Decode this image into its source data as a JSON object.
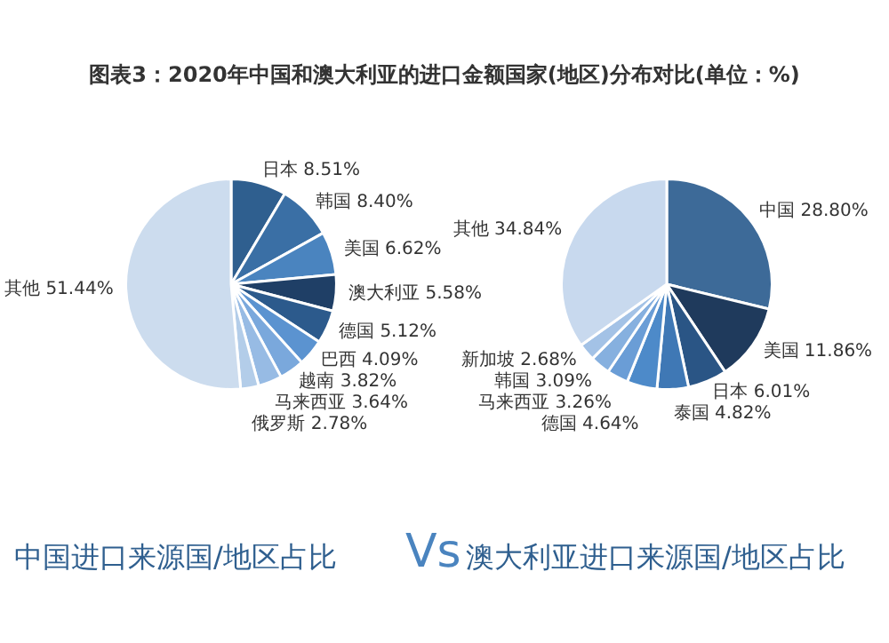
{
  "chart_data": [
    {
      "type": "pie",
      "title": "图表3：2020年中国和澳大利亚的进口金额国家(地区)分布对比(单位：%)",
      "categories": [
        "日本",
        "韩国",
        "美国",
        "澳大利亚",
        "德国",
        "巴西",
        "越南",
        "马来西亚",
        "俄罗斯",
        "其他"
      ],
      "values": [
        8.51,
        8.4,
        6.62,
        5.58,
        5.12,
        4.09,
        3.82,
        3.64,
        2.78,
        51.44
      ],
      "value_labels": [
        "8.51%",
        "8.40%",
        "6.62%",
        "5.58%",
        "5.12%",
        "4.09%",
        "3.82%",
        "3.64%",
        "2.78%",
        "51.44%"
      ],
      "colors": [
        "#2f5f8f",
        "#3a6fa5",
        "#4a84bf",
        "#1f3f66",
        "#2c5a8c",
        "#5b93d0",
        "#7aa8dc",
        "#97bbe4",
        "#b3cde9",
        "#ccdcee"
      ],
      "annotations": [
        "中国进口来源国/地区占比",
        "Vs"
      ],
      "legend": false
    },
    {
      "type": "pie",
      "categories": [
        "中国",
        "美国",
        "日本",
        "泰国",
        "德国",
        "马来西亚",
        "韩国",
        "新加坡",
        "其他"
      ],
      "values": [
        28.8,
        11.86,
        6.01,
        4.82,
        4.64,
        3.26,
        3.09,
        2.68,
        34.84
      ],
      "value_labels": [
        "28.80%",
        "11.86%",
        "6.01%",
        "4.82%",
        "4.64%",
        "3.26%",
        "3.09%",
        "2.68%",
        "34.84%"
      ],
      "colors": [
        "#3d6a98",
        "#1f3a5c",
        "#2a5585",
        "#3f78b5",
        "#4d8ac9",
        "#6a9dd6",
        "#86b0df",
        "#a3c2e6",
        "#c8d9ee"
      ],
      "annotations": [
        "澳大利亚进口来源国/地区占比"
      ],
      "legend": false
    }
  ]
}
